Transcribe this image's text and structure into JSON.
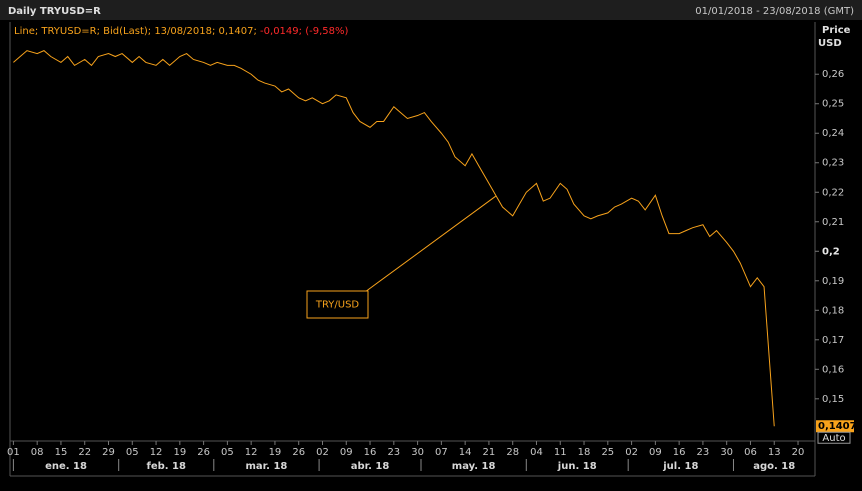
{
  "chart_data": {
    "type": "line",
    "title": "Daily TRYUSD=R",
    "date_range": "01/01/2018 - 23/08/2018 (GMT)",
    "legend": [
      {
        "text": "Line; TRYUSD=R; Bid(Last); 13/08/2018; 0,1407; ",
        "color": "#f7a21b"
      },
      {
        "text": "-0,0149; (-9,58%)",
        "color": "#ff2a2a"
      }
    ],
    "y_axis_label": [
      "Price",
      "USD"
    ],
    "annotation": "TRY/USD",
    "last_value_label": "0,1407",
    "auto_label": "Auto",
    "xlim": [
      "2017-12-31",
      "2018-08-25"
    ],
    "ylim": [
      0.1357,
      0.2777
    ],
    "yticks": [
      {
        "value": 0.15,
        "label": "0,15"
      },
      {
        "value": 0.16,
        "label": "0,16"
      },
      {
        "value": 0.17,
        "label": "0,17"
      },
      {
        "value": 0.18,
        "label": "0,18"
      },
      {
        "value": 0.19,
        "label": "0,19"
      },
      {
        "value": 0.2,
        "label": "0,2",
        "bold": true
      },
      {
        "value": 0.21,
        "label": "0,21"
      },
      {
        "value": 0.22,
        "label": "0,22"
      },
      {
        "value": 0.23,
        "label": "0,23"
      },
      {
        "value": 0.24,
        "label": "0,24"
      },
      {
        "value": 0.25,
        "label": "0,25"
      },
      {
        "value": 0.26,
        "label": "0,26"
      }
    ],
    "xticks": [
      {
        "value": "2018-01-01",
        "label": "01"
      },
      {
        "value": "2018-01-08",
        "label": "08"
      },
      {
        "value": "2018-01-15",
        "label": "15"
      },
      {
        "value": "2018-01-22",
        "label": "22"
      },
      {
        "value": "2018-01-29",
        "label": "29"
      },
      {
        "value": "2018-02-05",
        "label": "05"
      },
      {
        "value": "2018-02-12",
        "label": "12"
      },
      {
        "value": "2018-02-19",
        "label": "19"
      },
      {
        "value": "2018-02-26",
        "label": "26"
      },
      {
        "value": "2018-03-05",
        "label": "05"
      },
      {
        "value": "2018-03-12",
        "label": "12"
      },
      {
        "value": "2018-03-19",
        "label": "19"
      },
      {
        "value": "2018-03-26",
        "label": "26"
      },
      {
        "value": "2018-04-02",
        "label": "02"
      },
      {
        "value": "2018-04-09",
        "label": "09"
      },
      {
        "value": "2018-04-16",
        "label": "16"
      },
      {
        "value": "2018-04-23",
        "label": "23"
      },
      {
        "value": "2018-04-30",
        "label": "30"
      },
      {
        "value": "2018-05-07",
        "label": "07"
      },
      {
        "value": "2018-05-14",
        "label": "14"
      },
      {
        "value": "2018-05-21",
        "label": "21"
      },
      {
        "value": "2018-05-28",
        "label": "28"
      },
      {
        "value": "2018-06-04",
        "label": "04"
      },
      {
        "value": "2018-06-11",
        "label": "11"
      },
      {
        "value": "2018-06-18",
        "label": "18"
      },
      {
        "value": "2018-06-25",
        "label": "25"
      },
      {
        "value": "2018-07-02",
        "label": "02"
      },
      {
        "value": "2018-07-09",
        "label": "09"
      },
      {
        "value": "2018-07-16",
        "label": "16"
      },
      {
        "value": "2018-07-23",
        "label": "23"
      },
      {
        "value": "2018-07-30",
        "label": "30"
      },
      {
        "value": "2018-08-06",
        "label": "06"
      },
      {
        "value": "2018-08-13",
        "label": "13"
      },
      {
        "value": "2018-08-20",
        "label": "20"
      }
    ],
    "months": [
      {
        "start": "2018-01-01",
        "label": "ene. 18"
      },
      {
        "start": "2018-02-01",
        "label": "feb. 18"
      },
      {
        "start": "2018-03-01",
        "label": "mar. 18"
      },
      {
        "start": "2018-04-01",
        "label": "abr. 18"
      },
      {
        "start": "2018-05-01",
        "label": "may. 18"
      },
      {
        "start": "2018-06-01",
        "label": "jun. 18"
      },
      {
        "start": "2018-07-01",
        "label": "jul. 18"
      },
      {
        "start": "2018-08-01",
        "label": "ago. 18"
      }
    ],
    "x": [
      "2018-01-01",
      "2018-01-03",
      "2018-01-05",
      "2018-01-08",
      "2018-01-10",
      "2018-01-12",
      "2018-01-15",
      "2018-01-17",
      "2018-01-19",
      "2018-01-22",
      "2018-01-24",
      "2018-01-26",
      "2018-01-29",
      "2018-01-31",
      "2018-02-02",
      "2018-02-05",
      "2018-02-07",
      "2018-02-09",
      "2018-02-12",
      "2018-02-14",
      "2018-02-16",
      "2018-02-19",
      "2018-02-21",
      "2018-02-23",
      "2018-02-26",
      "2018-02-28",
      "2018-03-02",
      "2018-03-05",
      "2018-03-07",
      "2018-03-09",
      "2018-03-12",
      "2018-03-14",
      "2018-03-16",
      "2018-03-19",
      "2018-03-21",
      "2018-03-23",
      "2018-03-26",
      "2018-03-28",
      "2018-03-30",
      "2018-04-02",
      "2018-04-04",
      "2018-04-06",
      "2018-04-09",
      "2018-04-11",
      "2018-04-13",
      "2018-04-16",
      "2018-04-18",
      "2018-04-20",
      "2018-04-23",
      "2018-04-25",
      "2018-04-27",
      "2018-04-30",
      "2018-05-02",
      "2018-05-04",
      "2018-05-07",
      "2018-05-09",
      "2018-05-11",
      "2018-05-14",
      "2018-05-16",
      "2018-05-18",
      "2018-05-21",
      "2018-05-23",
      "2018-05-25",
      "2018-05-28",
      "2018-05-30",
      "2018-06-01",
      "2018-06-04",
      "2018-06-06",
      "2018-06-08",
      "2018-06-11",
      "2018-06-13",
      "2018-06-15",
      "2018-06-18",
      "2018-06-20",
      "2018-06-22",
      "2018-06-25",
      "2018-06-27",
      "2018-06-29",
      "2018-07-02",
      "2018-07-04",
      "2018-07-06",
      "2018-07-09",
      "2018-07-11",
      "2018-07-13",
      "2018-07-16",
      "2018-07-18",
      "2018-07-20",
      "2018-07-23",
      "2018-07-25",
      "2018-07-27",
      "2018-07-30",
      "2018-08-01",
      "2018-08-03",
      "2018-08-06",
      "2018-08-08",
      "2018-08-10",
      "2018-08-13"
    ],
    "series": [
      {
        "name": "TRY/USD",
        "color": "#f7a21b",
        "values": [
          0.264,
          0.266,
          0.268,
          0.267,
          0.268,
          0.266,
          0.264,
          0.266,
          0.263,
          0.265,
          0.263,
          0.266,
          0.267,
          0.266,
          0.267,
          0.264,
          0.266,
          0.264,
          0.263,
          0.265,
          0.263,
          0.266,
          0.267,
          0.265,
          0.264,
          0.263,
          0.264,
          0.263,
          0.263,
          0.262,
          0.26,
          0.258,
          0.257,
          0.256,
          0.254,
          0.255,
          0.252,
          0.251,
          0.252,
          0.25,
          0.251,
          0.253,
          0.252,
          0.247,
          0.244,
          0.242,
          0.244,
          0.244,
          0.249,
          0.247,
          0.245,
          0.246,
          0.247,
          0.244,
          0.24,
          0.237,
          0.232,
          0.229,
          0.233,
          0.229,
          0.223,
          0.219,
          0.215,
          0.212,
          0.216,
          0.22,
          0.223,
          0.217,
          0.218,
          0.223,
          0.221,
          0.216,
          0.212,
          0.211,
          0.212,
          0.213,
          0.215,
          0.216,
          0.218,
          0.217,
          0.214,
          0.219,
          0.212,
          0.206,
          0.206,
          0.207,
          0.208,
          0.209,
          0.205,
          0.207,
          0.203,
          0.2,
          0.196,
          0.188,
          0.191,
          0.188,
          0.1407
        ]
      }
    ]
  }
}
